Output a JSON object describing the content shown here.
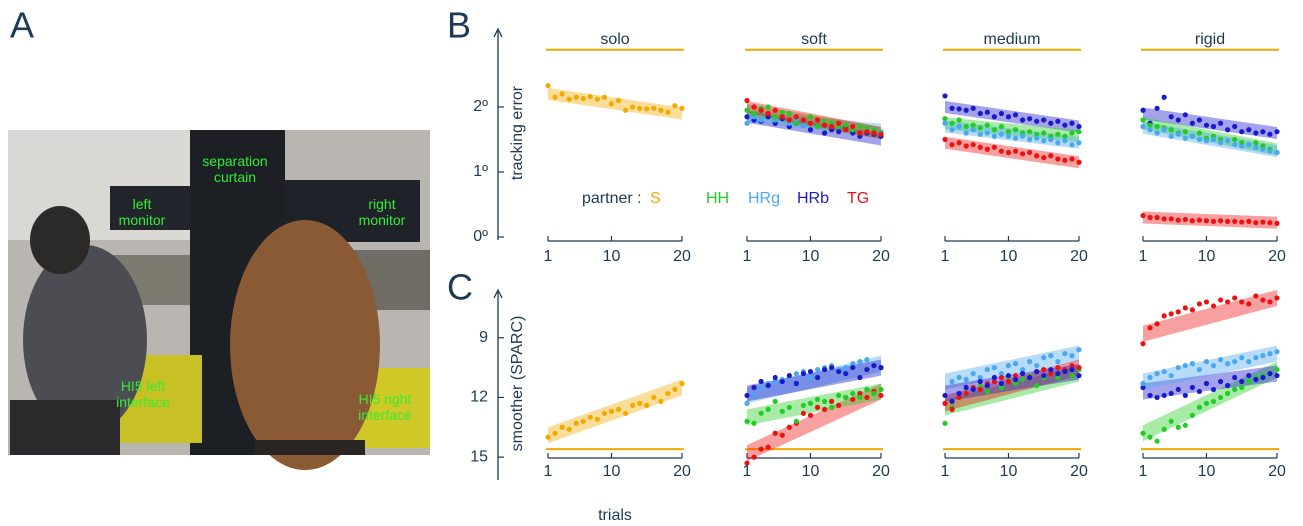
{
  "panel_labels": [
    "A",
    "B",
    "C"
  ],
  "photo": {
    "labels": [
      {
        "text": "separation curtain"
      },
      {
        "text": "left monitor"
      },
      {
        "text": "right monitor"
      },
      {
        "text": "HI5 left interface"
      },
      {
        "text": "HI5 right interface"
      }
    ]
  },
  "legend": {
    "title": "partner :",
    "entries": [
      {
        "name": "S",
        "color": "#f2a900"
      },
      {
        "name": "HH",
        "color": "#22cc22"
      },
      {
        "name": "HRg",
        "color": "#4aa8f0"
      },
      {
        "name": "HRb",
        "color": "#1a1acc"
      },
      {
        "name": "TG",
        "color": "#ee1111"
      }
    ]
  },
  "chart_data": [
    {
      "type": "scatter",
      "title": "solo",
      "y_label": "tracking error",
      "x": [
        1,
        2,
        3,
        4,
        5,
        6,
        7,
        8,
        9,
        10,
        11,
        12,
        13,
        14,
        15,
        16,
        17,
        18,
        19,
        20
      ],
      "xlim": [
        1,
        20
      ],
      "xticks": [
        1,
        10,
        20
      ],
      "ylim": [
        0,
        3.2
      ],
      "yticks": [
        {
          "value": 0,
          "label": "0º"
        },
        {
          "value": 1,
          "label": "1º"
        },
        {
          "value": 2,
          "label": "2º"
        }
      ],
      "reference_line": 2.88,
      "reference_color": "#f2a900",
      "series": [
        {
          "name": "S",
          "fit": [
            2.2,
            1.9
          ],
          "values": [
            2.33,
            2.15,
            2.2,
            2.12,
            2.15,
            2.13,
            2.16,
            2.12,
            2.15,
            2.05,
            2.1,
            1.95,
            2.0,
            1.98,
            1.97,
            1.98,
            1.95,
            1.92,
            2.02,
            1.98
          ]
        }
      ]
    },
    {
      "type": "scatter",
      "title": "soft",
      "x": [
        1,
        2,
        3,
        4,
        5,
        6,
        7,
        8,
        9,
        10,
        11,
        12,
        13,
        14,
        15,
        16,
        17,
        18,
        19,
        20
      ],
      "xlim": [
        1,
        20
      ],
      "xticks": [
        1,
        10,
        20
      ],
      "ylim": [
        0,
        3.2
      ],
      "reference_line": 2.88,
      "reference_color": "#f2a900",
      "series": [
        {
          "name": "HRb",
          "fit": [
            1.85,
            1.5
          ],
          "values": [
            1.85,
            1.8,
            1.78,
            1.85,
            1.75,
            1.82,
            1.7,
            1.75,
            1.72,
            1.65,
            1.7,
            1.6,
            1.65,
            1.62,
            1.7,
            1.6,
            1.55,
            1.6,
            1.58,
            1.55
          ]
        },
        {
          "name": "HRg",
          "fit": [
            1.85,
            1.65
          ],
          "values": [
            1.75,
            1.85,
            1.8,
            1.9,
            1.8,
            1.85,
            1.75,
            1.8,
            1.72,
            1.75,
            1.7,
            1.78,
            1.72,
            1.7,
            1.65,
            1.68,
            1.7,
            1.65,
            1.6,
            1.62
          ]
        },
        {
          "name": "HH",
          "fit": [
            1.95,
            1.6
          ],
          "values": [
            1.95,
            1.9,
            1.98,
            2.0,
            1.85,
            1.92,
            1.9,
            1.75,
            1.8,
            1.85,
            1.7,
            1.78,
            1.75,
            1.7,
            1.72,
            1.65,
            1.7,
            1.68,
            1.65,
            1.6
          ]
        },
        {
          "name": "TG",
          "fit": [
            2.0,
            1.6
          ],
          "values": [
            2.1,
            2.0,
            1.95,
            1.9,
            1.95,
            1.85,
            1.8,
            1.85,
            1.8,
            1.75,
            1.8,
            1.72,
            1.7,
            1.75,
            1.65,
            1.7,
            1.6,
            1.62,
            1.6,
            1.58
          ]
        }
      ]
    },
    {
      "type": "scatter",
      "title": "medium",
      "x": [
        1,
        2,
        3,
        4,
        5,
        6,
        7,
        8,
        9,
        10,
        11,
        12,
        13,
        14,
        15,
        16,
        17,
        18,
        19,
        20
      ],
      "xlim": [
        1,
        20
      ],
      "xticks": [
        1,
        10,
        20
      ],
      "ylim": [
        0,
        3.2
      ],
      "reference_line": 2.88,
      "reference_color": "#f2a900",
      "series": [
        {
          "name": "HRb",
          "fit": [
            2.0,
            1.7
          ],
          "values": [
            2.17,
            1.98,
            1.97,
            1.95,
            1.98,
            1.9,
            1.92,
            1.85,
            1.9,
            1.85,
            1.88,
            1.8,
            1.82,
            1.78,
            1.8,
            1.75,
            1.78,
            1.72,
            1.75,
            1.7
          ]
        },
        {
          "name": "HH",
          "fit": [
            1.75,
            1.55
          ],
          "values": [
            1.82,
            1.75,
            1.8,
            1.7,
            1.72,
            1.68,
            1.72,
            1.65,
            1.7,
            1.62,
            1.65,
            1.6,
            1.62,
            1.58,
            1.6,
            1.55,
            1.58,
            1.55,
            1.6,
            1.62
          ]
        },
        {
          "name": "HRg",
          "fit": [
            1.7,
            1.45
          ],
          "values": [
            1.75,
            1.65,
            1.7,
            1.6,
            1.65,
            1.58,
            1.6,
            1.55,
            1.58,
            1.55,
            1.52,
            1.55,
            1.5,
            1.52,
            1.48,
            1.5,
            1.45,
            1.48,
            1.42,
            1.45
          ]
        },
        {
          "name": "TG",
          "fit": [
            1.45,
            1.15
          ],
          "values": [
            1.5,
            1.42,
            1.45,
            1.4,
            1.42,
            1.38,
            1.35,
            1.38,
            1.32,
            1.3,
            1.32,
            1.28,
            1.3,
            1.25,
            1.22,
            1.25,
            1.2,
            1.18,
            1.2,
            1.15
          ]
        }
      ]
    },
    {
      "type": "scatter",
      "title": "rigid",
      "x": [
        1,
        2,
        3,
        4,
        5,
        6,
        7,
        8,
        9,
        10,
        11,
        12,
        13,
        14,
        15,
        16,
        17,
        18,
        19,
        20
      ],
      "xlim": [
        1,
        20
      ],
      "xticks": [
        1,
        10,
        20
      ],
      "ylim": [
        0,
        3.2
      ],
      "reference_line": 2.88,
      "reference_color": "#f2a900",
      "series": [
        {
          "name": "HRb",
          "fit": [
            1.9,
            1.6
          ],
          "values": [
            1.95,
            1.75,
            1.98,
            2.15,
            1.85,
            1.8,
            1.88,
            1.75,
            1.8,
            1.72,
            1.7,
            1.75,
            1.65,
            1.7,
            1.62,
            1.65,
            1.6,
            1.62,
            1.58,
            1.62
          ]
        },
        {
          "name": "HH",
          "fit": [
            1.75,
            1.35
          ],
          "values": [
            1.8,
            1.72,
            1.7,
            1.68,
            1.65,
            1.6,
            1.62,
            1.55,
            1.6,
            1.52,
            1.55,
            1.5,
            1.48,
            1.5,
            1.45,
            1.42,
            1.45,
            1.4,
            1.35,
            1.3
          ]
        },
        {
          "name": "HRg",
          "fit": [
            1.68,
            1.32
          ],
          "values": [
            1.7,
            1.65,
            1.6,
            1.65,
            1.55,
            1.58,
            1.52,
            1.55,
            1.5,
            1.48,
            1.5,
            1.45,
            1.48,
            1.42,
            1.4,
            1.42,
            1.38,
            1.35,
            1.32,
            1.3
          ]
        },
        {
          "name": "TG",
          "fit": [
            0.3,
            0.22
          ],
          "values": [
            0.33,
            0.3,
            0.3,
            0.28,
            0.28,
            0.26,
            0.27,
            0.25,
            0.26,
            0.25,
            0.24,
            0.25,
            0.24,
            0.24,
            0.23,
            0.24,
            0.22,
            0.23,
            0.22,
            0.21
          ]
        }
      ]
    },
    {
      "type": "scatter",
      "y_label": "smoother (SPARC)",
      "x_label": "trials",
      "x": [
        1,
        2,
        3,
        4,
        5,
        6,
        7,
        8,
        9,
        10,
        11,
        12,
        13,
        14,
        15,
        16,
        17,
        18,
        19,
        20
      ],
      "xlim": [
        1,
        20
      ],
      "xticks": [
        1,
        10,
        20
      ],
      "ylim": [
        16,
        6.6
      ],
      "yticks": [
        9,
        12,
        15
      ],
      "reference_line": 14.6,
      "reference_color": "#f2a900",
      "series": [
        {
          "name": "S",
          "fit": [
            13.9,
            11.5
          ],
          "values": [
            14.0,
            13.8,
            13.5,
            13.6,
            13.3,
            13.2,
            13.0,
            13.1,
            12.8,
            12.7,
            12.6,
            12.8,
            12.4,
            12.3,
            12.4,
            12.0,
            12.2,
            11.8,
            11.6,
            11.3
          ]
        }
      ]
    },
    {
      "type": "scatter",
      "x": [
        1,
        2,
        3,
        4,
        5,
        6,
        7,
        8,
        9,
        10,
        11,
        12,
        13,
        14,
        15,
        16,
        17,
        18,
        19,
        20
      ],
      "xlim": [
        1,
        20
      ],
      "xticks": [
        1,
        10,
        20
      ],
      "ylim": [
        16,
        6.6
      ],
      "reference_line": 14.6,
      "reference_color": "#f2a900",
      "series": [
        {
          "name": "TG",
          "fit": [
            14.8,
            11.7
          ],
          "values": [
            15.3,
            15.0,
            14.6,
            14.5,
            13.8,
            13.9,
            13.5,
            13.3,
            12.8,
            12.9,
            12.5,
            12.6,
            12.2,
            12.4,
            12.0,
            12.1,
            11.8,
            12.0,
            11.7,
            11.9
          ]
        },
        {
          "name": "HH",
          "fit": [
            13.0,
            11.7
          ],
          "values": [
            13.2,
            13.3,
            12.8,
            12.6,
            12.2,
            12.7,
            12.5,
            13.2,
            12.4,
            12.3,
            12.1,
            12.2,
            12.5,
            11.9,
            12.0,
            11.8,
            12.0,
            11.6,
            11.8,
            11.6
          ]
        },
        {
          "name": "HRg",
          "fit": [
            11.9,
            10.3
          ],
          "values": [
            12.3,
            11.9,
            11.5,
            11.3,
            11.2,
            11.1,
            11.0,
            10.8,
            10.7,
            11.0,
            10.6,
            10.5,
            10.4,
            10.6,
            10.5,
            10.3,
            10.2,
            10.1,
            10.4,
            10.5
          ]
        },
        {
          "name": "HRb",
          "fit": [
            11.8,
            10.5
          ],
          "values": [
            11.9,
            11.5,
            11.2,
            11.4,
            11.0,
            11.2,
            10.9,
            11.3,
            10.8,
            10.7,
            11.0,
            10.6,
            10.5,
            10.7,
            10.8,
            10.5,
            11.0,
            10.6,
            10.4,
            10.5
          ]
        }
      ]
    },
    {
      "type": "scatter",
      "x": [
        1,
        2,
        3,
        4,
        5,
        6,
        7,
        8,
        9,
        10,
        11,
        12,
        13,
        14,
        15,
        16,
        17,
        18,
        19,
        20
      ],
      "xlim": [
        1,
        20
      ],
      "xticks": [
        1,
        10,
        20
      ],
      "ylim": [
        16,
        6.6
      ],
      "reference_line": 14.6,
      "reference_color": "#f2a900",
      "series": [
        {
          "name": "HRg",
          "fit": [
            11.2,
            9.8
          ],
          "values": [
            12.3,
            11.2,
            11.0,
            11.1,
            10.8,
            11.0,
            10.6,
            10.5,
            10.8,
            10.4,
            10.3,
            10.6,
            10.2,
            10.4,
            10.0,
            9.9,
            10.2,
            9.8,
            9.9,
            9.6
          ]
        },
        {
          "name": "HH",
          "fit": [
            12.5,
            10.8
          ],
          "values": [
            13.3,
            12.5,
            12.0,
            11.8,
            11.6,
            11.4,
            11.7,
            11.2,
            11.5,
            11.0,
            11.3,
            11.1,
            10.9,
            11.4,
            11.0,
            10.8,
            11.0,
            10.7,
            10.9,
            10.6
          ]
        },
        {
          "name": "TG",
          "fit": [
            12.3,
            10.5
          ],
          "values": [
            12.3,
            12.6,
            12.0,
            11.8,
            11.5,
            11.6,
            11.3,
            11.2,
            11.0,
            11.2,
            10.9,
            10.8,
            11.0,
            10.7,
            10.6,
            10.8,
            10.5,
            10.6,
            10.4,
            10.5
          ]
        },
        {
          "name": "HRb",
          "fit": [
            11.8,
            10.7
          ],
          "values": [
            11.9,
            12.2,
            11.8,
            11.5,
            11.6,
            11.2,
            11.4,
            11.0,
            11.3,
            10.9,
            11.1,
            10.8,
            11.0,
            10.7,
            10.9,
            10.6,
            10.8,
            10.7,
            10.6,
            10.9
          ]
        }
      ]
    },
    {
      "type": "scatter",
      "x": [
        1,
        2,
        3,
        4,
        5,
        6,
        7,
        8,
        9,
        10,
        11,
        12,
        13,
        14,
        15,
        16,
        17,
        18,
        19,
        20
      ],
      "xlim": [
        1,
        20
      ],
      "xticks": [
        1,
        10,
        20
      ],
      "ylim": [
        16,
        6.6
      ],
      "reference_line": 14.6,
      "reference_color": "#f2a900",
      "series": [
        {
          "name": "HH",
          "fit": [
            13.8,
            10.6
          ],
          "values": [
            13.8,
            14.0,
            14.2,
            13.6,
            13.2,
            13.5,
            13.4,
            12.9,
            12.5,
            12.3,
            12.2,
            12.0,
            11.8,
            11.6,
            11.5,
            11.2,
            11.0,
            10.9,
            10.8,
            10.6
          ]
        },
        {
          "name": "HRb",
          "fit": [
            11.7,
            10.8
          ],
          "values": [
            11.5,
            11.9,
            12.0,
            11.9,
            11.8,
            11.6,
            11.9,
            11.5,
            11.7,
            11.3,
            11.6,
            11.2,
            11.4,
            11.0,
            11.2,
            10.9,
            11.1,
            11.0,
            10.8,
            10.9
          ]
        },
        {
          "name": "HRg",
          "fit": [
            11.2,
            9.8
          ],
          "values": [
            11.3,
            11.0,
            10.8,
            10.7,
            10.9,
            10.5,
            10.4,
            10.3,
            10.6,
            10.2,
            10.4,
            10.1,
            10.3,
            10.2,
            10.0,
            10.2,
            10.0,
            9.9,
            9.8,
            9.7
          ]
        },
        {
          "name": "TG",
          "fit": [
            8.8,
            7.0
          ],
          "values": [
            9.3,
            8.5,
            8.3,
            7.9,
            7.8,
            7.7,
            7.5,
            7.6,
            7.3,
            7.2,
            7.4,
            7.1,
            7.2,
            7.0,
            7.2,
            7.3,
            6.9,
            7.1,
            7.2,
            7.0
          ]
        }
      ]
    }
  ]
}
